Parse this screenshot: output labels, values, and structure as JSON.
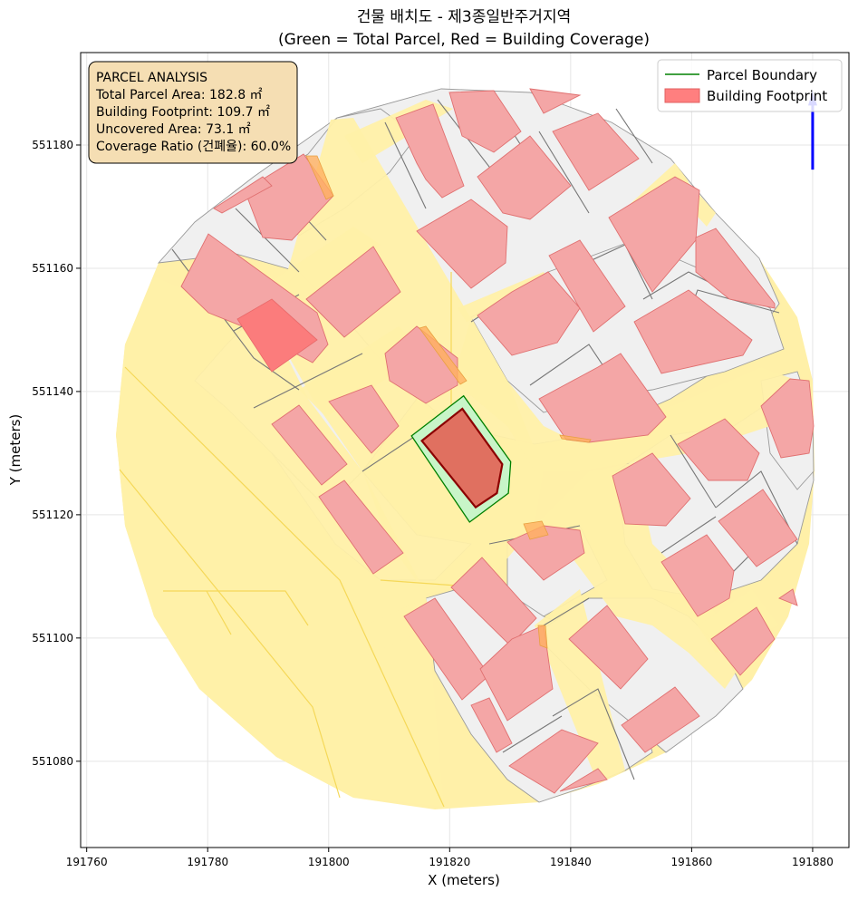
{
  "chart_data": {
    "type": "map",
    "title": "건물 배치도 - 제3종일반주거지역",
    "subtitle": "(Green = Total Parcel, Red = Building Coverage)",
    "xlabel": "X (meters)",
    "ylabel": "Y (meters)",
    "xlim": [
      191759,
      191886
    ],
    "ylim": [
      551066,
      551195
    ],
    "xticks": [
      191760,
      191780,
      191800,
      191820,
      191840,
      191860,
      191880
    ],
    "yticks": [
      551080,
      551100,
      551120,
      551140,
      551160,
      551180
    ],
    "grid": true,
    "legend": {
      "placement": "top-right",
      "entries": [
        {
          "label": "Parcel Boundary",
          "kind": "line",
          "color": "#008000"
        },
        {
          "label": "Building Footprint",
          "kind": "patch",
          "color": "#ff7f7f"
        }
      ]
    },
    "info_box": {
      "placement": "top-left",
      "lines": [
        "PARCEL ANALYSIS",
        "Total Parcel Area: 182.8 ㎡",
        "Building Footprint: 109.7 ㎡",
        "Uncovered Area: 73.1 ㎡",
        "Coverage Ratio (건폐율): 60.0%"
      ]
    },
    "subject_parcel": {
      "area_m2": 182.8,
      "polygon": [
        [
          191813.7,
          551132.8
        ],
        [
          191822.3,
          551139.3
        ],
        [
          191830.1,
          551128.6
        ],
        [
          191829.7,
          551123.5
        ],
        [
          191823.3,
          551118.8
        ]
      ]
    },
    "subject_building": {
      "area_m2": 109.7,
      "polygon": [
        [
          191815.4,
          551132.0
        ],
        [
          191822.1,
          551137.2
        ],
        [
          191828.7,
          551128.2
        ],
        [
          191827.8,
          551123.5
        ],
        [
          191824.3,
          551121.2
        ]
      ]
    },
    "north_arrow": {
      "x": 191880,
      "y_from": 551176,
      "y_to": 551187
    }
  },
  "colors": {
    "context_fill": "#f0f0f0",
    "context_edge": "#555555",
    "road_fill": "#fff0a8",
    "road_line": "#f5d858",
    "parcel_fill": "#c8f5c8",
    "parcel_edge": "#008000",
    "building_fill": "#f4a6a6",
    "building_edge": "#e07070",
    "subject_building_fill": "#e07060",
    "subject_building_edge": "#8b0000",
    "infobox_fill": "#f5deb3",
    "north_arrow": "#0000ff"
  }
}
